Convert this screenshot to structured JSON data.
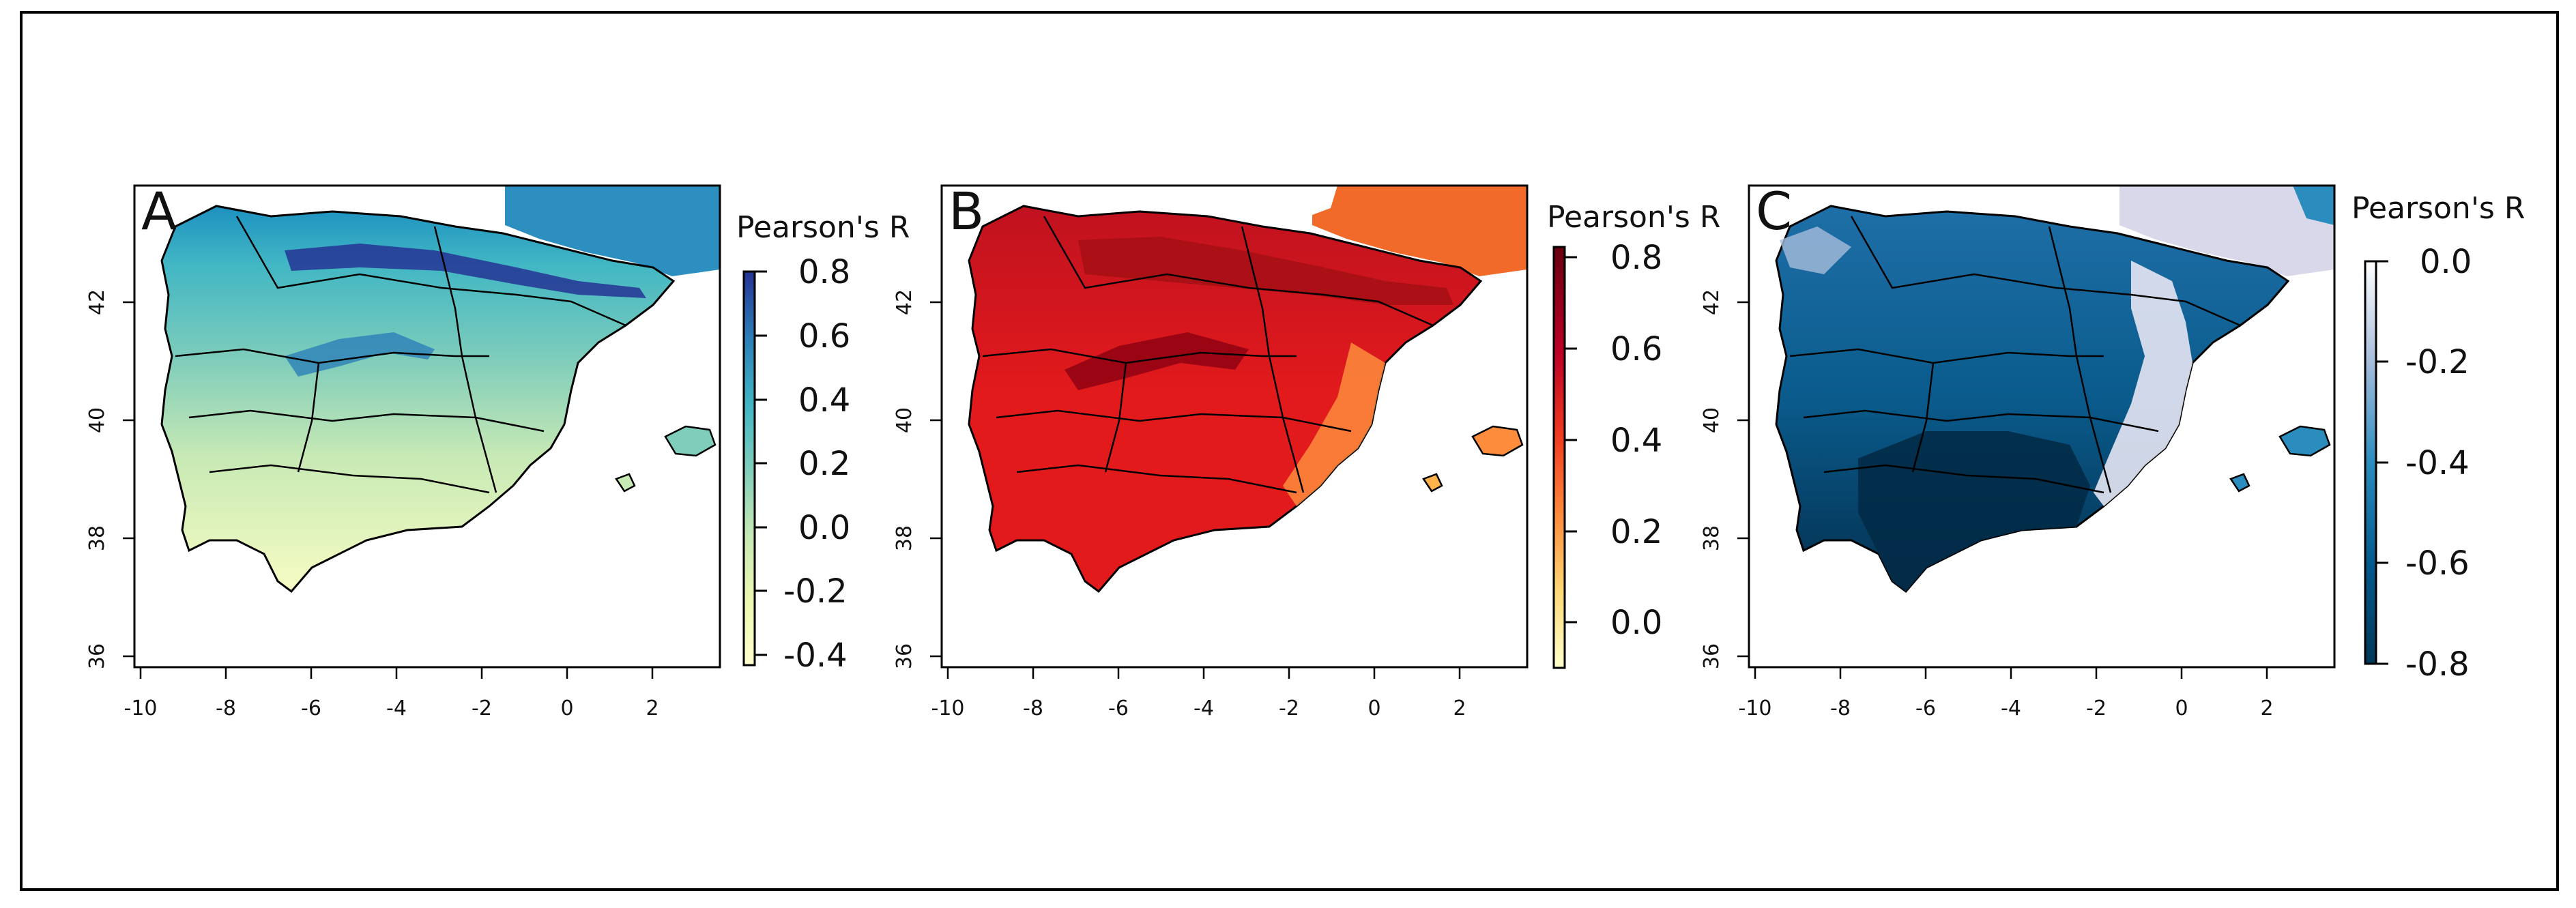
{
  "figure": {
    "lon_ticks": [
      "-10",
      "-8",
      "-6",
      "-4",
      "-2",
      "0",
      "2"
    ],
    "lat_ticks": [
      "36",
      "38",
      "40",
      "42"
    ],
    "panels": [
      {
        "letter": "A",
        "legend_title": "Pearson's R",
        "legend_ticks": [
          "0.8",
          "0.6",
          "0.4",
          "0.2",
          "0.0",
          "-0.2",
          "-0.4"
        ],
        "color_stops": [
          "#ffffcc",
          "#d6efb3",
          "#a6dbbb",
          "#66c2c2",
          "#41b6c4",
          "#2c7fb8",
          "#253494",
          "#1d2a6e"
        ]
      },
      {
        "letter": "B",
        "legend_title": "Pearson's R",
        "legend_ticks": [
          "0.8",
          "0.6",
          "0.4",
          "0.2",
          "0.0"
        ],
        "color_stops": [
          "#ffffcc",
          "#fed976",
          "#feb24c",
          "#fd8d3c",
          "#f03b20",
          "#e31a1c",
          "#bd0026",
          "#67000d"
        ]
      },
      {
        "letter": "C",
        "legend_title": "Pearson's R",
        "legend_ticks": [
          "0.0",
          "-0.2",
          "-0.4",
          "-0.6",
          "-0.8"
        ],
        "color_stops": [
          "#ffffff",
          "#e6e6f3",
          "#c6cbe5",
          "#74a9cf",
          "#2b8cbe",
          "#0570b0",
          "#045a8d",
          "#023858"
        ]
      }
    ]
  }
}
